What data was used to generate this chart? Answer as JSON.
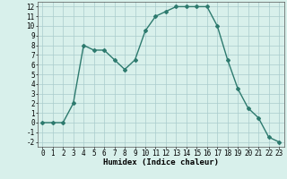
{
  "x": [
    0,
    1,
    2,
    3,
    4,
    5,
    6,
    7,
    8,
    9,
    10,
    11,
    12,
    13,
    14,
    15,
    16,
    17,
    18,
    19,
    20,
    21,
    22,
    23
  ],
  "y": [
    0,
    0,
    0,
    2,
    8,
    7.5,
    7.5,
    6.5,
    5.5,
    6.5,
    9.5,
    11,
    11.5,
    12,
    12,
    12,
    12,
    10,
    6.5,
    3.5,
    1.5,
    0.5,
    -1.5,
    -2
  ],
  "xlabel": "Humidex (Indice chaleur)",
  "line_color": "#2d7a6e",
  "marker": "D",
  "marker_size": 2,
  "bg_color": "#d8f0eb",
  "grid_color": "#aacccc",
  "xlim": [
    -0.5,
    23.5
  ],
  "ylim": [
    -2.5,
    12.5
  ],
  "yticks": [
    -2,
    -1,
    0,
    1,
    2,
    3,
    4,
    5,
    6,
    7,
    8,
    9,
    10,
    11,
    12
  ],
  "xticks": [
    0,
    1,
    2,
    3,
    4,
    5,
    6,
    7,
    8,
    9,
    10,
    11,
    12,
    13,
    14,
    15,
    16,
    17,
    18,
    19,
    20,
    21,
    22,
    23
  ],
  "tick_fontsize": 5.5,
  "label_fontsize": 6.5
}
